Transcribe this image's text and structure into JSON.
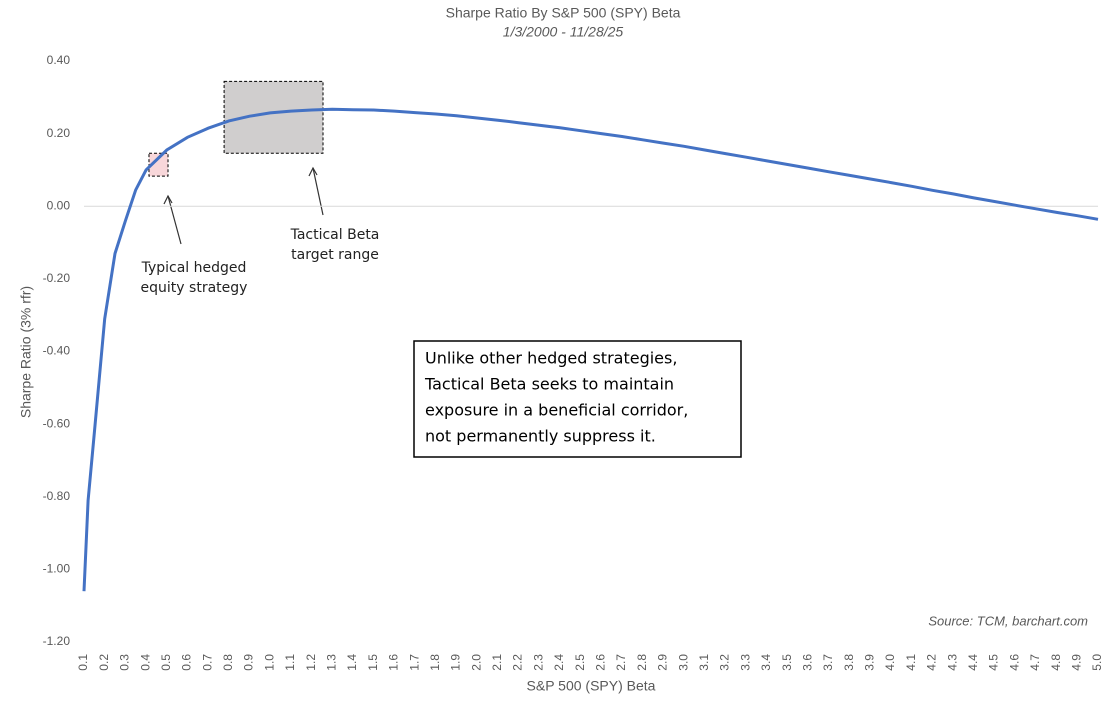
{
  "chart_data": {
    "type": "line",
    "title": "Sharpe Ratio By S&P 500 (SPY) Beta",
    "subtitle": "1/3/2000 - 11/28/25",
    "x_label": "S&P 500 (SPY) Beta",
    "y_label": "Sharpe Ratio (3% rfr)",
    "source": "Source: TCM, barchart.com",
    "xlim": [
      0.1,
      5.0
    ],
    "ylim": [
      -1.2,
      0.4
    ],
    "xticks": [
      0.1,
      0.2,
      0.3,
      0.4,
      0.5,
      0.6,
      0.7,
      0.8,
      0.9,
      {
        "value": 1,
        "label": "1.0"
      },
      1.1,
      1.2,
      1.3,
      1.4,
      1.5,
      1.6,
      1.7,
      1.8,
      1.9,
      {
        "value": 2,
        "label": "2.0"
      },
      2.1,
      2.2,
      2.3,
      2.4,
      2.5,
      2.6,
      2.7,
      2.8,
      2.9,
      {
        "value": 3,
        "label": "3.0"
      },
      3.1,
      3.2,
      3.3,
      3.4,
      3.5,
      3.6,
      3.7,
      3.8,
      3.9,
      {
        "value": 4,
        "label": "4.0"
      },
      4.1,
      4.2,
      4.3,
      4.4,
      4.5,
      4.6,
      4.7,
      4.8,
      4.9,
      {
        "value": 5,
        "label": "5.0"
      }
    ],
    "yticks": [
      {
        "value": 0.4,
        "label": "0.40"
      },
      {
        "value": 0.2,
        "label": "0.20"
      },
      {
        "value": 0,
        "label": "0.00"
      },
      {
        "value": -0.2,
        "label": "-0.20"
      },
      {
        "value": -0.4,
        "label": "-0.40"
      },
      {
        "value": -0.6,
        "label": "-0.60"
      },
      {
        "value": -0.8,
        "label": "-0.80"
      },
      {
        "value": -1,
        "label": "-1.00"
      },
      {
        "value": -1.2,
        "label": "-1.20"
      }
    ],
    "series": [
      {
        "name": "Sharpe Ratio",
        "color": "#4472c4",
        "x": [
          0.1,
          0.12,
          0.15,
          0.2,
          0.25,
          0.3,
          0.35,
          0.4,
          0.5,
          0.6,
          0.7,
          0.8,
          0.9,
          1.0,
          1.1,
          1.2,
          1.3,
          1.4,
          1.5,
          1.6,
          1.7,
          1.8,
          1.9,
          2.0,
          2.1,
          2.2,
          2.3,
          2.4,
          2.5,
          2.6,
          2.7,
          2.8,
          2.9,
          3.0,
          3.1,
          3.2,
          3.3,
          3.4,
          3.5,
          3.6,
          3.7,
          3.8,
          3.9,
          4.0,
          4.1,
          4.2,
          4.3,
          4.4,
          4.5,
          4.6,
          4.7,
          4.8,
          4.9,
          5.0
        ],
        "values": [
          -1.06,
          -0.81,
          -0.625,
          -0.31,
          -0.13,
          -0.04,
          0.045,
          0.1,
          0.155,
          0.19,
          0.215,
          0.235,
          0.248,
          0.257,
          0.262,
          0.265,
          0.267,
          0.266,
          0.265,
          0.262,
          0.258,
          0.254,
          0.249,
          0.243,
          0.237,
          0.23,
          0.223,
          0.216,
          0.208,
          0.2,
          0.192,
          0.183,
          0.174,
          0.165,
          0.155,
          0.145,
          0.135,
          0.125,
          0.115,
          0.105,
          0.095,
          0.085,
          0.075,
          0.065,
          0.055,
          0.044,
          0.034,
          0.023,
          0.013,
          0.003,
          -0.007,
          -0.017,
          -0.026,
          -0.036
        ]
      }
    ],
    "regions": [
      {
        "label": [
          "Typical hedged",
          "equity strategy"
        ],
        "color": "#f8d7da",
        "x": [
          0.414,
          0.506
        ],
        "y": [
          0.083,
          0.146
        ]
      },
      {
        "label": [
          "Tactical Beta",
          "target range"
        ],
        "color": "#d0cece",
        "x": [
          0.777,
          1.255
        ],
        "y": [
          0.146,
          0.344
        ]
      }
    ],
    "callout": [
      "Unlike other hedged strategies,",
      "Tactical Beta seeks to maintain",
      "exposure in a beneficial corridor,",
      "not permanently suppress it."
    ]
  }
}
